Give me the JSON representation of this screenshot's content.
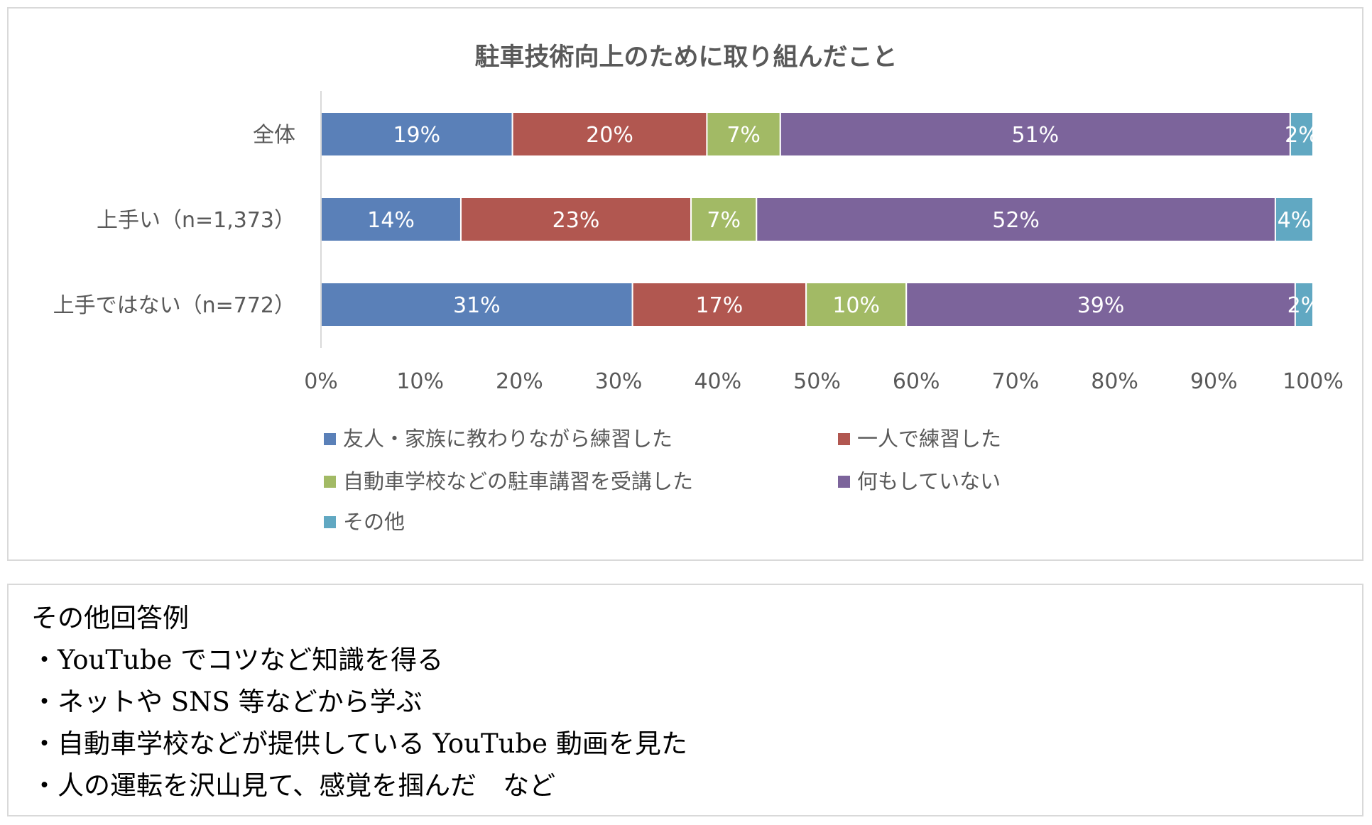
{
  "chart_data": {
    "type": "bar",
    "orientation": "horizontal",
    "stacked": true,
    "title": "駐車技術向上のために取り組んだこと",
    "categories": [
      "全体",
      "上手い（n=1,373）",
      "上手ではない（n=772）"
    ],
    "series": [
      {
        "name": "友人・家族に教わりながら練習した",
        "color": "#5a80b8",
        "values": [
          19.3,
          14.1,
          31.4
        ],
        "labels": [
          "19%",
          "14%",
          "31%"
        ]
      },
      {
        "name": "一人で練習した",
        "color": "#b15750",
        "values": [
          19.6,
          23.2,
          17.5
        ],
        "labels": [
          "20%",
          "23%",
          "17%"
        ]
      },
      {
        "name": "自動車学校などの駐車講習を受講した",
        "color": "#a2ba65",
        "values": [
          7.4,
          6.6,
          10.1
        ],
        "labels": [
          "7%",
          "7%",
          "10%"
        ]
      },
      {
        "name": "何もしていない",
        "color": "#7c649b",
        "values": [
          51.4,
          52.3,
          39.2
        ],
        "labels": [
          "51%",
          "52%",
          "39%"
        ]
      },
      {
        "name": "その他",
        "color": "#61a8c2",
        "values": [
          2.3,
          3.8,
          1.8
        ],
        "labels": [
          "2%",
          "4%",
          "2%"
        ]
      }
    ],
    "xlim": [
      0,
      100
    ],
    "xticks": [
      "0%",
      "10%",
      "20%",
      "30%",
      "40%",
      "50%",
      "60%",
      "70%",
      "80%",
      "90%",
      "100%"
    ],
    "grid": false,
    "legend": "bottom"
  },
  "notes": {
    "heading": "その他回答例",
    "items": [
      "・YouTube でコツなど知識を得る",
      "・ネットや SNS 等などから学ぶ",
      "・自動車学校などが提供している YouTube 動画を見た",
      "・人の運転を沢山見て、感覚を掴んだ　など"
    ]
  }
}
